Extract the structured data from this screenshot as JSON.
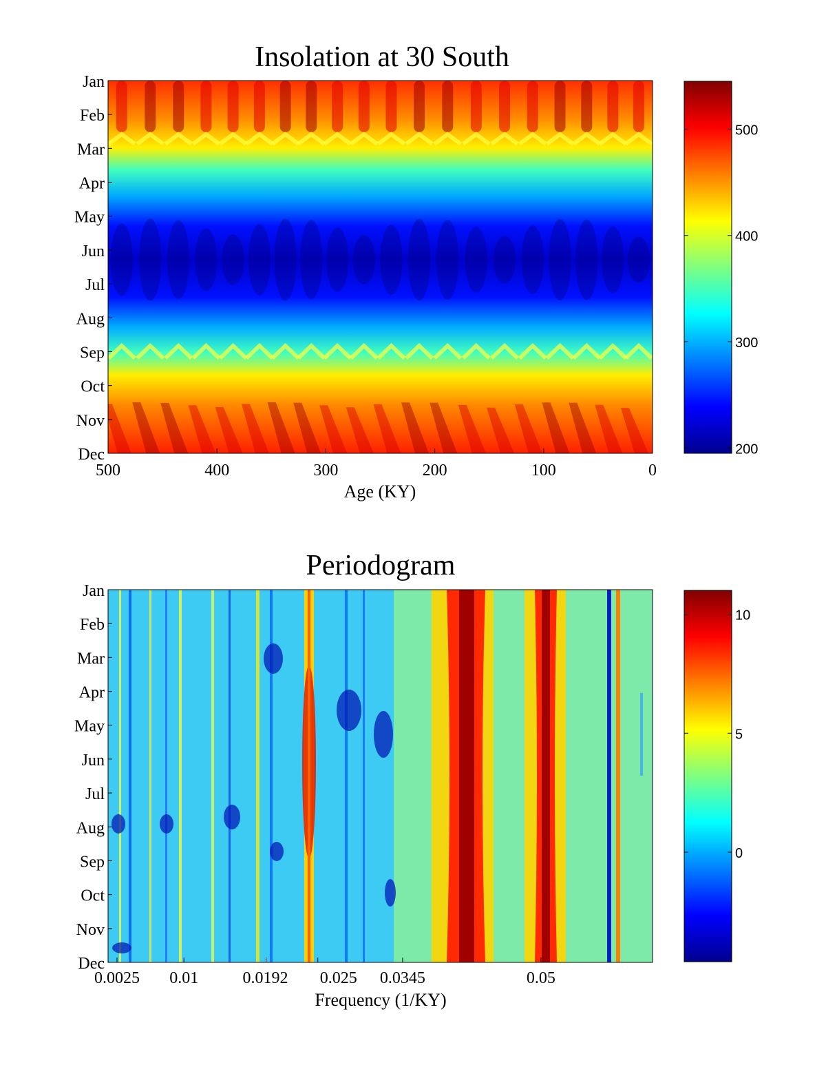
{
  "chart_data": [
    {
      "type": "heatmap",
      "title": "Insolation at 30 South",
      "xlabel": "Age (KY)",
      "ylabel": "",
      "x_ticks": [
        500,
        400,
        300,
        200,
        100,
        0
      ],
      "xlim": [
        500,
        0
      ],
      "y_ticks": [
        "Jan",
        "Feb",
        "Mar",
        "Apr",
        "May",
        "Jun",
        "Jul",
        "Aug",
        "Sep",
        "Oct",
        "Nov",
        "Dec"
      ],
      "colorbar": {
        "ticks": [
          200,
          300,
          400,
          500
        ],
        "range": [
          195,
          545
        ]
      },
      "colormap": "jet",
      "grid": false,
      "legend": "colorbar-right"
    },
    {
      "type": "heatmap",
      "title": "Periodogram",
      "xlabel": "Frequency (1/KY)",
      "ylabel": "",
      "x_ticks": [
        0.0025,
        0.01,
        0.0192,
        0.025,
        0.0345,
        0.05
      ],
      "x_tick_labels": [
        "0.0025",
        "0.01",
        "0.0192",
        "0.025",
        "0.0345",
        "0.05"
      ],
      "xlim": [
        0.0015,
        0.0625
      ],
      "y_ticks": [
        "Jan",
        "Feb",
        "Mar",
        "Apr",
        "May",
        "Jun",
        "Jul",
        "Aug",
        "Sep",
        "Oct",
        "Nov",
        "Dec"
      ],
      "colorbar": {
        "ticks": [
          0,
          5,
          10
        ],
        "range": [
          -4.6,
          11
        ]
      },
      "colormap": "jet",
      "grid": false,
      "legend": "colorbar-right"
    }
  ]
}
